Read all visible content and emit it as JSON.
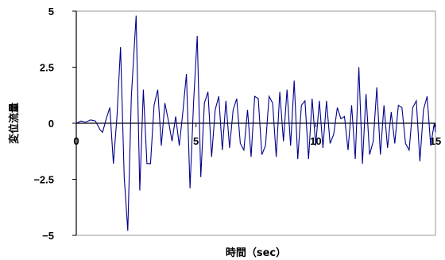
{
  "chart_data": {
    "type": "line",
    "title": "",
    "xlabel": "時間（sec）",
    "ylabel": "変位流量",
    "xlim": [
      0,
      15
    ],
    "ylim": [
      -5,
      5
    ],
    "x_ticks": [
      0,
      5,
      10,
      15
    ],
    "x_tick_labels": [
      "0",
      "5",
      "10",
      "15"
    ],
    "y_ticks": [
      -5,
      -2.5,
      0,
      2.5,
      5
    ],
    "y_tick_labels": [
      "−5",
      "−2.5",
      "0",
      "2.5",
      "5"
    ],
    "grid": false,
    "legend": "none",
    "line_color": "#00008b",
    "series": [
      {
        "x": [
          0.0,
          0.2,
          0.4,
          0.6,
          0.8,
          1.0,
          1.1,
          1.25,
          1.4,
          1.55,
          1.7,
          1.85,
          2.0,
          2.15,
          2.3,
          2.5,
          2.65,
          2.8,
          2.95,
          3.1,
          3.25,
          3.4,
          3.55,
          3.7,
          3.85,
          4.0,
          4.15,
          4.3,
          4.45,
          4.6,
          4.75,
          4.9,
          5.05,
          5.2,
          5.35,
          5.5,
          5.65,
          5.8,
          5.95,
          6.1,
          6.25,
          6.4,
          6.55,
          6.7,
          6.85,
          7.0,
          7.15,
          7.3,
          7.45,
          7.6,
          7.75,
          7.9,
          8.05,
          8.2,
          8.35,
          8.5,
          8.65,
          8.8,
          8.95,
          9.1,
          9.25,
          9.4,
          9.55,
          9.7,
          9.85,
          10.0,
          10.15,
          10.3,
          10.45,
          10.6,
          10.75,
          10.9,
          11.05,
          11.2,
          11.35,
          11.5,
          11.65,
          11.8,
          11.95,
          12.1,
          12.25,
          12.4,
          12.55,
          12.7,
          12.85,
          13.0,
          13.15,
          13.3,
          13.45,
          13.6,
          13.75,
          13.9,
          14.05,
          14.2,
          14.35,
          14.5,
          14.65,
          14.8,
          14.95,
          15.0
        ],
        "y": [
          0,
          0.1,
          0.05,
          0.15,
          0.1,
          -0.3,
          -0.4,
          0.2,
          0.7,
          -1.8,
          0.3,
          3.4,
          -2.4,
          -4.8,
          1.2,
          4.8,
          -3.0,
          1.5,
          -1.8,
          -1.8,
          0.8,
          1.5,
          -1.0,
          0.9,
          0.1,
          -0.8,
          0.3,
          -1.0,
          0.5,
          2.2,
          -2.9,
          1.0,
          3.9,
          -2.4,
          0.9,
          1.4,
          -1.5,
          0.6,
          1.2,
          -1.2,
          1.0,
          -1.1,
          0.6,
          1.1,
          -0.9,
          -1.2,
          0.6,
          -1.5,
          1.2,
          1.1,
          -1.4,
          -1.0,
          1.2,
          0.9,
          -1.5,
          1.4,
          -0.8,
          1.5,
          -1.0,
          1.9,
          -1.6,
          0.8,
          1.0,
          -1.6,
          1.1,
          -1.0,
          1.0,
          -1.1,
          1.0,
          -0.9,
          -0.5,
          0.7,
          0.2,
          0.3,
          -1.2,
          0.8,
          -1.6,
          2.5,
          -1.8,
          1.3,
          -1.4,
          -0.8,
          1.6,
          -1.4,
          0.8,
          -1.1,
          0.5,
          -0.9,
          0.8,
          0.7,
          -0.9,
          -1.2,
          0.7,
          1.0,
          -1.7,
          0.6,
          1.2,
          -1.0,
          0.0,
          -0.4
        ]
      }
    ]
  }
}
